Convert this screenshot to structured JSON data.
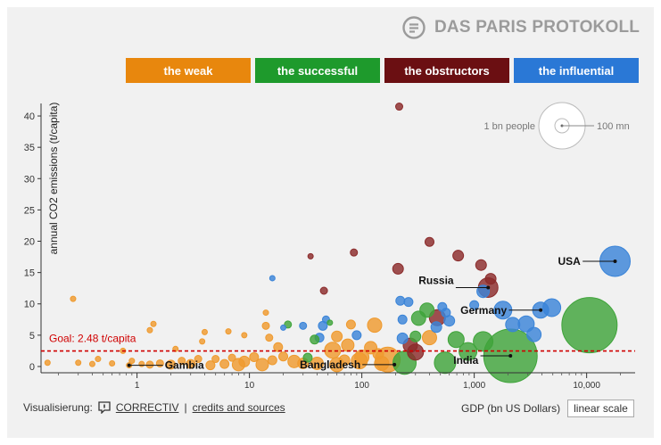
{
  "brand": {
    "title": "DAS PARIS PROTOKOLL",
    "logo_icon": "document-lines-icon"
  },
  "tabs": [
    {
      "label": "the weak",
      "color": "#e8870d"
    },
    {
      "label": "the successful",
      "color": "#1e9a2c"
    },
    {
      "label": "the obstructors",
      "color": "#6b0f12"
    },
    {
      "label": "the influential",
      "color": "#2a78d6"
    }
  ],
  "chart_data": {
    "type": "scatter",
    "ylabel": "annual CO2 emissions (t/capita)",
    "xlabel": "GDP (bn US Dollars)",
    "x_scale": "log",
    "xlim": [
      0.14,
      27000
    ],
    "ylim": [
      -1,
      42
    ],
    "x_ticks": [
      "1",
      "10",
      "100",
      "1,000",
      "10,000"
    ],
    "y_ticks": [
      "0",
      "5",
      "10",
      "15",
      "20",
      "25",
      "30",
      "35",
      "40"
    ],
    "goal": {
      "label": "Goal: 2.48 t/capita",
      "value": 2.48,
      "color": "#d00000"
    },
    "size_legend": {
      "small_label": "1 bn people",
      "large_label": "100 mn"
    },
    "category_colors": {
      "weak": "#ef9a2e",
      "successful": "#3fa43a",
      "obstructors": "#8b2b2b",
      "influential": "#3a84d8"
    },
    "annotations": [
      {
        "label": "USA",
        "x": 17900,
        "y": 16.8
      },
      {
        "label": "Russia",
        "x": 1330,
        "y": 12.6
      },
      {
        "label": "Germany",
        "x": 3900,
        "y": 9.0
      },
      {
        "label": "India",
        "x": 2100,
        "y": 1.7
      },
      {
        "label": "Bangladesh",
        "x": 195,
        "y": 0.3
      },
      {
        "label": "Gambia",
        "x": 0.85,
        "y": 0.2
      }
    ],
    "points": [
      {
        "x": 10600,
        "y": 6.6,
        "r": 31,
        "c": "successful"
      },
      {
        "x": 2100,
        "y": 1.7,
        "r": 30,
        "c": "successful"
      },
      {
        "x": 17900,
        "y": 16.8,
        "r": 17,
        "c": "influential"
      },
      {
        "x": 1330,
        "y": 12.6,
        "r": 11,
        "c": "obstructors"
      },
      {
        "x": 3900,
        "y": 9.0,
        "r": 9,
        "c": "influential"
      },
      {
        "x": 4900,
        "y": 9.4,
        "r": 10,
        "c": "influential"
      },
      {
        "x": 1800,
        "y": 9.0,
        "r": 10,
        "c": "influential"
      },
      {
        "x": 2900,
        "y": 6.8,
        "r": 9,
        "c": "influential"
      },
      {
        "x": 2200,
        "y": 6.7,
        "r": 8,
        "c": "influential"
      },
      {
        "x": 3400,
        "y": 5.1,
        "r": 8,
        "c": "influential"
      },
      {
        "x": 1200,
        "y": 12.0,
        "r": 7,
        "c": "influential"
      },
      {
        "x": 1400,
        "y": 14.0,
        "r": 6,
        "c": "obstructors"
      },
      {
        "x": 1150,
        "y": 16.2,
        "r": 6,
        "c": "obstructors"
      },
      {
        "x": 720,
        "y": 17.7,
        "r": 6,
        "c": "obstructors"
      },
      {
        "x": 215,
        "y": 41.5,
        "r": 4,
        "c": "obstructors"
      },
      {
        "x": 400,
        "y": 19.9,
        "r": 5,
        "c": "obstructors"
      },
      {
        "x": 210,
        "y": 15.6,
        "r": 6,
        "c": "obstructors"
      },
      {
        "x": 85,
        "y": 18.2,
        "r": 4,
        "c": "obstructors"
      },
      {
        "x": 35,
        "y": 17.6,
        "r": 3,
        "c": "obstructors"
      },
      {
        "x": 46,
        "y": 12.1,
        "r": 4,
        "c": "obstructors"
      },
      {
        "x": 16,
        "y": 14.1,
        "r": 3,
        "c": "influential"
      },
      {
        "x": 470,
        "y": 7.8,
        "r": 9,
        "c": "obstructors"
      },
      {
        "x": 520,
        "y": 9.5,
        "r": 5,
        "c": "influential"
      },
      {
        "x": 560,
        "y": 8.6,
        "r": 5,
        "c": "influential"
      },
      {
        "x": 380,
        "y": 9.0,
        "r": 8,
        "c": "successful"
      },
      {
        "x": 320,
        "y": 7.7,
        "r": 8,
        "c": "successful"
      },
      {
        "x": 260,
        "y": 10.3,
        "r": 5,
        "c": "influential"
      },
      {
        "x": 220,
        "y": 10.5,
        "r": 5,
        "c": "influential"
      },
      {
        "x": 230,
        "y": 7.5,
        "r": 5,
        "c": "influential"
      },
      {
        "x": 600,
        "y": 7.3,
        "r": 6,
        "c": "influential"
      },
      {
        "x": 1000,
        "y": 9.8,
        "r": 5,
        "c": "influential"
      },
      {
        "x": 690,
        "y": 4.3,
        "r": 9,
        "c": "successful"
      },
      {
        "x": 1200,
        "y": 4.0,
        "r": 11,
        "c": "successful"
      },
      {
        "x": 880,
        "y": 2.4,
        "r": 10,
        "c": "successful"
      },
      {
        "x": 550,
        "y": 0.6,
        "r": 12,
        "c": "successful"
      },
      {
        "x": 400,
        "y": 4.6,
        "r": 8,
        "c": "weak"
      },
      {
        "x": 270,
        "y": 3.4,
        "r": 8,
        "c": "obstructors"
      },
      {
        "x": 300,
        "y": 2.3,
        "r": 9,
        "c": "obstructors"
      },
      {
        "x": 230,
        "y": 4.5,
        "r": 6,
        "c": "influential"
      },
      {
        "x": 170,
        "y": 1.1,
        "r": 14,
        "c": "weak"
      },
      {
        "x": 240,
        "y": 0.6,
        "r": 13,
        "c": "successful"
      },
      {
        "x": 130,
        "y": 6.6,
        "r": 8,
        "c": "weak"
      },
      {
        "x": 120,
        "y": 3.0,
        "r": 7,
        "c": "weak"
      },
      {
        "x": 90,
        "y": 5.0,
        "r": 5,
        "c": "influential"
      },
      {
        "x": 75,
        "y": 3.4,
        "r": 7,
        "c": "weak"
      },
      {
        "x": 60,
        "y": 4.8,
        "r": 6,
        "c": "weak"
      },
      {
        "x": 55,
        "y": 2.6,
        "r": 9,
        "c": "weak"
      },
      {
        "x": 45,
        "y": 6.5,
        "r": 5,
        "c": "influential"
      },
      {
        "x": 42,
        "y": 4.6,
        "r": 5,
        "c": "influential"
      },
      {
        "x": 48,
        "y": 7.5,
        "r": 4,
        "c": "influential"
      },
      {
        "x": 52,
        "y": 7.0,
        "r": 3,
        "c": "successful"
      },
      {
        "x": 38,
        "y": 4.3,
        "r": 5,
        "c": "successful"
      },
      {
        "x": 33,
        "y": 1.4,
        "r": 5,
        "c": "successful"
      },
      {
        "x": 80,
        "y": 6.7,
        "r": 5,
        "c": "weak"
      },
      {
        "x": 30,
        "y": 6.5,
        "r": 4,
        "c": "influential"
      },
      {
        "x": 22,
        "y": 6.7,
        "r": 4,
        "c": "successful"
      },
      {
        "x": 20,
        "y": 6.2,
        "r": 3,
        "c": "influential"
      },
      {
        "x": 18,
        "y": 3.1,
        "r": 5,
        "c": "weak"
      },
      {
        "x": 15,
        "y": 4.6,
        "r": 4,
        "c": "weak"
      },
      {
        "x": 14,
        "y": 6.5,
        "r": 4,
        "c": "weak"
      },
      {
        "x": 14,
        "y": 8.6,
        "r": 3,
        "c": "weak"
      },
      {
        "x": 25,
        "y": 0.8,
        "r": 7,
        "c": "weak"
      },
      {
        "x": 30,
        "y": 0.5,
        "r": 6,
        "c": "weak"
      },
      {
        "x": 40,
        "y": 0.5,
        "r": 7,
        "c": "weak"
      },
      {
        "x": 60,
        "y": 0.3,
        "r": 8,
        "c": "weak"
      },
      {
        "x": 70,
        "y": 1.0,
        "r": 6,
        "c": "weak"
      },
      {
        "x": 95,
        "y": 0.9,
        "r": 9,
        "c": "weak"
      },
      {
        "x": 150,
        "y": 0.5,
        "r": 8,
        "c": "weak"
      },
      {
        "x": 20,
        "y": 1.6,
        "r": 5,
        "c": "weak"
      },
      {
        "x": 16,
        "y": 1.0,
        "r": 5,
        "c": "weak"
      },
      {
        "x": 13,
        "y": 0.3,
        "r": 7,
        "c": "weak"
      },
      {
        "x": 11,
        "y": 1.5,
        "r": 5,
        "c": "weak"
      },
      {
        "x": 9,
        "y": 0.8,
        "r": 6,
        "c": "weak"
      },
      {
        "x": 8,
        "y": 0.3,
        "r": 7,
        "c": "weak"
      },
      {
        "x": 7,
        "y": 1.4,
        "r": 4,
        "c": "weak"
      },
      {
        "x": 6,
        "y": 0.4,
        "r": 5,
        "c": "weak"
      },
      {
        "x": 5,
        "y": 1.2,
        "r": 4,
        "c": "weak"
      },
      {
        "x": 4.5,
        "y": 0.2,
        "r": 5,
        "c": "weak"
      },
      {
        "x": 4,
        "y": 5.5,
        "r": 3,
        "c": "weak"
      },
      {
        "x": 3.8,
        "y": 4.0,
        "r": 3,
        "c": "weak"
      },
      {
        "x": 3.5,
        "y": 1.2,
        "r": 4,
        "c": "weak"
      },
      {
        "x": 3,
        "y": 0.4,
        "r": 5,
        "c": "weak"
      },
      {
        "x": 2.5,
        "y": 0.9,
        "r": 4,
        "c": "weak"
      },
      {
        "x": 2,
        "y": 0.3,
        "r": 5,
        "c": "weak"
      },
      {
        "x": 1.6,
        "y": 0.5,
        "r": 4,
        "c": "weak"
      },
      {
        "x": 1.4,
        "y": 6.8,
        "r": 3,
        "c": "weak"
      },
      {
        "x": 1.3,
        "y": 5.8,
        "r": 3,
        "c": "weak"
      },
      {
        "x": 1.3,
        "y": 0.3,
        "r": 4,
        "c": "weak"
      },
      {
        "x": 1.1,
        "y": 0.4,
        "r": 3,
        "c": "weak"
      },
      {
        "x": 0.9,
        "y": 0.9,
        "r": 3,
        "c": "weak"
      },
      {
        "x": 0.85,
        "y": 0.2,
        "r": 3,
        "c": "weak"
      },
      {
        "x": 0.6,
        "y": 0.5,
        "r": 3,
        "c": "weak"
      },
      {
        "x": 0.45,
        "y": 1.2,
        "r": 3,
        "c": "weak"
      },
      {
        "x": 0.4,
        "y": 0.4,
        "r": 3,
        "c": "weak"
      },
      {
        "x": 0.3,
        "y": 0.6,
        "r": 3,
        "c": "weak"
      },
      {
        "x": 0.27,
        "y": 10.8,
        "r": 3,
        "c": "weak"
      },
      {
        "x": 0.16,
        "y": 0.6,
        "r": 3,
        "c": "weak"
      },
      {
        "x": 9,
        "y": 5.0,
        "r": 3,
        "c": "weak"
      },
      {
        "x": 6.5,
        "y": 5.6,
        "r": 3,
        "c": "weak"
      },
      {
        "x": 2.2,
        "y": 2.8,
        "r": 3,
        "c": "weak"
      },
      {
        "x": 0.75,
        "y": 2.5,
        "r": 3,
        "c": "weak"
      },
      {
        "x": 300,
        "y": 4.8,
        "r": 6,
        "c": "successful"
      },
      {
        "x": 460,
        "y": 6.3,
        "r": 6,
        "c": "influential"
      },
      {
        "x": 140,
        "y": 2.0,
        "r": 6,
        "c": "weak"
      },
      {
        "x": 100,
        "y": 1.5,
        "r": 8,
        "c": "weak"
      }
    ]
  },
  "footer": {
    "visualisierung": "Visualisierung:",
    "correctiv": "CORRECTIV",
    "separator": "|",
    "credits": "credits and sources",
    "gdp_label": "GDP (bn US Dollars)",
    "scale_button": "linear scale"
  }
}
